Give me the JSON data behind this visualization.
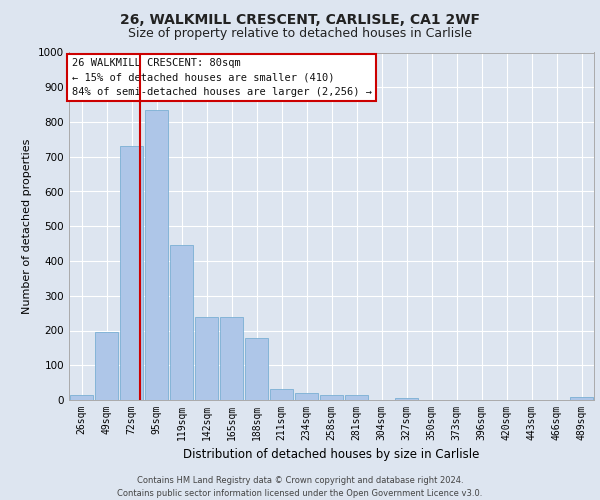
{
  "title1": "26, WALKMILL CRESCENT, CARLISLE, CA1 2WF",
  "title2": "Size of property relative to detached houses in Carlisle",
  "xlabel": "Distribution of detached houses by size in Carlisle",
  "ylabel": "Number of detached properties",
  "footer1": "Contains HM Land Registry data © Crown copyright and database right 2024.",
  "footer2": "Contains public sector information licensed under the Open Government Licence v3.0.",
  "categories": [
    "26sqm",
    "49sqm",
    "72sqm",
    "95sqm",
    "119sqm",
    "142sqm",
    "165sqm",
    "188sqm",
    "211sqm",
    "234sqm",
    "258sqm",
    "281sqm",
    "304sqm",
    "327sqm",
    "350sqm",
    "373sqm",
    "396sqm",
    "420sqm",
    "443sqm",
    "466sqm",
    "489sqm"
  ],
  "values": [
    15,
    195,
    730,
    835,
    447,
    240,
    240,
    178,
    32,
    20,
    15,
    15,
    0,
    5,
    0,
    0,
    0,
    0,
    0,
    0,
    8
  ],
  "bar_color": "#aec6e8",
  "bar_edge_color": "#7aafd4",
  "annotation_title": "26 WALKMILL CRESCENT: 80sqm",
  "annotation_line1": "← 15% of detached houses are smaller (410)",
  "annotation_line2": "84% of semi-detached houses are larger (2,256) →",
  "vline_color": "#cc0000",
  "vline_x_index": 2,
  "ylim": [
    0,
    1000
  ],
  "yticks": [
    0,
    100,
    200,
    300,
    400,
    500,
    600,
    700,
    800,
    900,
    1000
  ],
  "background_color": "#dde5f0",
  "plot_bg_color": "#dde5f0",
  "annotation_box_color": "#ffffff",
  "annotation_box_edge": "#cc0000",
  "grid_color": "#ffffff",
  "title1_fontsize": 10,
  "title2_fontsize": 9,
  "xlabel_fontsize": 8.5,
  "ylabel_fontsize": 8,
  "footer_fontsize": 6,
  "tick_fontsize": 7
}
